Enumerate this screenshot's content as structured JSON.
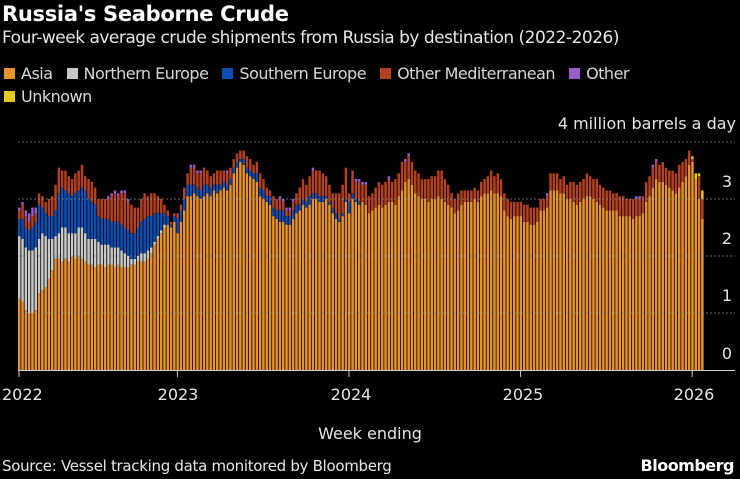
{
  "chart_data": {
    "type": "bar",
    "stacked": true,
    "title": "Russia's Seaborne Crude",
    "subtitle": "Four-week average crude shipments from Russia by destination (2022-2026)",
    "ylabel": "4 million barrels a day",
    "xlabel": "Week ending",
    "ylim": [
      0,
      4
    ],
    "y_ticks": [
      "0",
      "1",
      "2",
      "3"
    ],
    "x_ticks": [
      "2022",
      "2023",
      "2024",
      "2025",
      "2026"
    ],
    "grid": true,
    "legend_position": "top-left",
    "source": "Source: Vessel tracking data monitored by Bloomberg",
    "series": [
      {
        "name": "Asia",
        "color": "#e8922c",
        "values": [
          1.25,
          1.2,
          1.05,
          1.0,
          1.0,
          1.05,
          1.35,
          1.4,
          1.45,
          1.6,
          1.75,
          1.95,
          1.95,
          1.9,
          1.95,
          1.9,
          2.0,
          1.95,
          2.0,
          1.95,
          1.9,
          1.85,
          1.85,
          1.8,
          1.85,
          1.85,
          1.8,
          1.85,
          1.85,
          1.8,
          1.85,
          1.8,
          1.8,
          1.8,
          1.85,
          1.85,
          1.9,
          1.9,
          1.9,
          1.95,
          2.05,
          2.2,
          2.3,
          2.4,
          2.5,
          2.55,
          2.5,
          2.6,
          2.4,
          2.6,
          2.8,
          3.05,
          3.05,
          3.1,
          3.05,
          3.0,
          3.05,
          3.1,
          3.05,
          3.15,
          3.1,
          3.15,
          3.2,
          3.15,
          3.25,
          3.45,
          3.55,
          3.65,
          3.6,
          3.45,
          3.4,
          3.35,
          3.3,
          3.05,
          3.0,
          2.95,
          2.9,
          2.7,
          2.65,
          2.6,
          2.6,
          2.55,
          2.55,
          2.65,
          2.75,
          2.8,
          2.9,
          2.85,
          2.9,
          3.0,
          3.0,
          2.95,
          2.95,
          3.0,
          2.9,
          2.75,
          2.65,
          2.6,
          2.7,
          2.95,
          2.75,
          3.0,
          2.95,
          2.9,
          2.95,
          2.9,
          2.75,
          2.8,
          2.85,
          2.9,
          2.85,
          2.9,
          2.95,
          2.95,
          2.9,
          3.05,
          3.15,
          3.3,
          3.35,
          3.25,
          3.1,
          3.05,
          3.0,
          3.0,
          2.95,
          3.0,
          3.0,
          3.05,
          3.0,
          2.95,
          2.9,
          2.85,
          2.75,
          2.8,
          2.9,
          2.95,
          2.95,
          2.95,
          3.0,
          2.95,
          3.05,
          3.1,
          3.1,
          3.15,
          3.1,
          3.1,
          3.05,
          2.8,
          2.7,
          2.65,
          2.7,
          2.7,
          2.7,
          2.6,
          2.6,
          2.55,
          2.55,
          2.6,
          2.8,
          2.8,
          2.85,
          3.15,
          3.15,
          3.15,
          3.1,
          3.1,
          3.0,
          3.0,
          2.95,
          2.9,
          2.95,
          3.0,
          3.05,
          3.05,
          3.0,
          2.95,
          2.9,
          2.85,
          2.8,
          2.8,
          2.8,
          2.8,
          2.7,
          2.7,
          2.7,
          2.7,
          2.65,
          2.7,
          2.7,
          2.75,
          2.95,
          3.05,
          3.2,
          3.35,
          3.3,
          3.3,
          3.25,
          3.2,
          3.15,
          3.1,
          3.2,
          3.3,
          3.4,
          3.6,
          3.65,
          3.35,
          3.0,
          2.65
        ]
      },
      {
        "name": "Northern Europe",
        "color": "#c8c8c8",
        "values": [
          1.1,
          1.1,
          1.1,
          1.1,
          1.1,
          1.1,
          0.95,
          1.0,
          0.9,
          0.7,
          0.55,
          0.4,
          0.45,
          0.6,
          0.55,
          0.5,
          0.4,
          0.45,
          0.5,
          0.55,
          0.5,
          0.45,
          0.45,
          0.5,
          0.4,
          0.35,
          0.4,
          0.35,
          0.3,
          0.35,
          0.3,
          0.3,
          0.25,
          0.2,
          0.1,
          0.1,
          0.1,
          0.15,
          0.15,
          0.15,
          0.1,
          0.05,
          0.05,
          0.05,
          0.05,
          0,
          0,
          0,
          0,
          0,
          0,
          0,
          0,
          0,
          0,
          0,
          0,
          0,
          0,
          0,
          0,
          0,
          0,
          0,
          0,
          0,
          0,
          0,
          0,
          0,
          0,
          0,
          0,
          0,
          0,
          0,
          0,
          0,
          0,
          0,
          0,
          0,
          0,
          0,
          0,
          0,
          0,
          0,
          0,
          0,
          0,
          0,
          0,
          0,
          0,
          0,
          0,
          0,
          0,
          0,
          0,
          0,
          0,
          0,
          0,
          0,
          0,
          0,
          0,
          0,
          0,
          0,
          0,
          0,
          0,
          0,
          0,
          0,
          0,
          0,
          0,
          0,
          0,
          0,
          0,
          0,
          0,
          0,
          0,
          0,
          0,
          0,
          0,
          0,
          0,
          0,
          0,
          0,
          0,
          0,
          0,
          0,
          0,
          0,
          0,
          0,
          0,
          0,
          0,
          0,
          0,
          0,
          0,
          0,
          0,
          0,
          0,
          0,
          0,
          0,
          0,
          0,
          0,
          0,
          0,
          0,
          0,
          0,
          0,
          0,
          0,
          0,
          0,
          0,
          0,
          0,
          0,
          0,
          0,
          0,
          0,
          0,
          0,
          0,
          0,
          0,
          0,
          0,
          0,
          0,
          0,
          0,
          0,
          0,
          0,
          0,
          0,
          0,
          0,
          0,
          0,
          0,
          0,
          0,
          0,
          0,
          0,
          0
        ]
      },
      {
        "name": "Southern Europe",
        "color": "#0b4fb5",
        "values": [
          0.3,
          0.35,
          0.35,
          0.35,
          0.4,
          0.45,
          0.6,
          0.45,
          0.4,
          0.4,
          0.4,
          0.45,
          0.7,
          0.7,
          0.65,
          0.7,
          0.65,
          0.7,
          0.65,
          0.7,
          0.75,
          0.7,
          0.65,
          0.6,
          0.45,
          0.45,
          0.45,
          0.45,
          0.45,
          0.45,
          0.45,
          0.45,
          0.45,
          0.45,
          0.45,
          0.45,
          0.5,
          0.55,
          0.6,
          0.6,
          0.55,
          0.5,
          0.4,
          0.3,
          0.2,
          0.15,
          0.05,
          0.1,
          0.25,
          0.2,
          0.2,
          0.2,
          0.2,
          0.15,
          0.15,
          0.15,
          0.2,
          0.15,
          0.15,
          0.1,
          0.15,
          0.1,
          0.1,
          0.1,
          0.1,
          0.1,
          0.1,
          0.05,
          0.1,
          0.1,
          0.1,
          0.1,
          0.15,
          0.15,
          0.15,
          0.1,
          0.15,
          0.15,
          0.15,
          0.2,
          0.2,
          0.15,
          0.15,
          0.15,
          0.15,
          0.1,
          0.1,
          0.1,
          0.15,
          0.1,
          0.1,
          0.1,
          0.1,
          0.05,
          0.05,
          0.1,
          0.1,
          0.05,
          0.05,
          0.05,
          0.2,
          0.1,
          0.05,
          0.05,
          0,
          0,
          0,
          0,
          0,
          0,
          0,
          0,
          0,
          0,
          0,
          0,
          0,
          0,
          0,
          0,
          0,
          0,
          0,
          0,
          0,
          0,
          0,
          0,
          0,
          0,
          0,
          0,
          0,
          0,
          0,
          0,
          0,
          0,
          0,
          0,
          0,
          0,
          0,
          0,
          0,
          0,
          0,
          0,
          0,
          0,
          0,
          0,
          0,
          0,
          0,
          0,
          0,
          0,
          0,
          0,
          0,
          0,
          0,
          0,
          0,
          0,
          0,
          0,
          0,
          0,
          0,
          0,
          0,
          0,
          0,
          0,
          0,
          0,
          0,
          0,
          0,
          0,
          0,
          0,
          0,
          0,
          0,
          0,
          0,
          0,
          0,
          0,
          0,
          0,
          0,
          0,
          0,
          0,
          0,
          0,
          0,
          0,
          0,
          0,
          0,
          0,
          0,
          0
        ]
      },
      {
        "name": "Other Mediterranean",
        "color": "#b3401f",
        "values": [
          0.15,
          0.25,
          0.2,
          0.15,
          0.2,
          0.15,
          0.2,
          0.2,
          0.2,
          0.3,
          0.35,
          0.45,
          0.45,
          0.3,
          0.35,
          0.3,
          0.3,
          0.35,
          0.35,
          0.4,
          0.25,
          0.35,
          0.35,
          0.3,
          0.3,
          0.35,
          0.35,
          0.35,
          0.45,
          0.5,
          0.45,
          0.55,
          0.6,
          0.5,
          0.5,
          0.45,
          0.35,
          0.4,
          0.45,
          0.35,
          0.4,
          0.35,
          0.3,
          0.25,
          0.15,
          0.1,
          0.05,
          0.05,
          0.1,
          0.1,
          0.2,
          0.2,
          0.3,
          0.3,
          0.25,
          0.3,
          0.3,
          0.25,
          0.2,
          0.2,
          0.25,
          0.25,
          0.2,
          0.2,
          0.2,
          0.15,
          0.15,
          0.15,
          0.15,
          0.2,
          0.2,
          0.15,
          0.2,
          0.25,
          0.2,
          0.15,
          0.1,
          0.2,
          0.2,
          0.2,
          0.15,
          0.1,
          0.1,
          0.15,
          0.2,
          0.3,
          0.35,
          0.3,
          0.35,
          0.4,
          0.4,
          0.45,
          0.4,
          0.35,
          0.3,
          0.25,
          0.35,
          0.45,
          0.5,
          0.55,
          0.15,
          0.4,
          0.3,
          0.35,
          0.3,
          0.35,
          0.3,
          0.3,
          0.35,
          0.4,
          0.4,
          0.4,
          0.4,
          0.35,
          0.45,
          0.4,
          0.5,
          0.35,
          0.4,
          0.4,
          0.4,
          0.4,
          0.35,
          0.35,
          0.4,
          0.4,
          0.4,
          0.45,
          0.5,
          0.4,
          0.35,
          0.25,
          0.25,
          0.3,
          0.25,
          0.2,
          0.2,
          0.2,
          0.2,
          0.2,
          0.25,
          0.25,
          0.3,
          0.35,
          0.3,
          0.35,
          0.3,
          0.3,
          0.3,
          0.3,
          0.25,
          0.25,
          0.25,
          0.3,
          0.3,
          0.3,
          0.3,
          0.25,
          0.2,
          0.2,
          0.2,
          0.3,
          0.3,
          0.3,
          0.25,
          0.3,
          0.25,
          0.3,
          0.35,
          0.35,
          0.35,
          0.35,
          0.4,
          0.35,
          0.35,
          0.4,
          0.35,
          0.35,
          0.35,
          0.35,
          0.3,
          0.3,
          0.35,
          0.35,
          0.3,
          0.3,
          0.35,
          0.3,
          0.3,
          0.3,
          0.35,
          0.35,
          0.35,
          0.3,
          0.3,
          0.35,
          0.3,
          0.3,
          0.35,
          0.35,
          0.4,
          0.35,
          0.3,
          0.25,
          0.05,
          0,
          0.4,
          0.35
        ]
      },
      {
        "name": "Other",
        "color": "#9b5cc9",
        "values": [
          0.05,
          0.05,
          0.1,
          0.15,
          0.15,
          0.1,
          0,
          0,
          0,
          0,
          0,
          0,
          0,
          0,
          0,
          0,
          0,
          0,
          0,
          0,
          0,
          0,
          0,
          0,
          0,
          0,
          0,
          0.05,
          0.05,
          0.05,
          0.05,
          0.05,
          0.05,
          0.05,
          0,
          0,
          0,
          0,
          0,
          0,
          0,
          0,
          0,
          0,
          0,
          0,
          0,
          0,
          0,
          0,
          0,
          0,
          0.05,
          0.05,
          0.05,
          0.05,
          0,
          0,
          0,
          0,
          0,
          0,
          0,
          0.05,
          0,
          0,
          0,
          0,
          0,
          0,
          0,
          0,
          0,
          0,
          0,
          0,
          0,
          0,
          0,
          0.05,
          0.05,
          0.05,
          0.05,
          0.05,
          0,
          0,
          0,
          0,
          0,
          0.05,
          0,
          0,
          0,
          0,
          0,
          0,
          0,
          0,
          0,
          0,
          0,
          0,
          0.05,
          0.05,
          0.05,
          0.05,
          0,
          0,
          0,
          0,
          0,
          0,
          0.05,
          0,
          0,
          0,
          0,
          0.05,
          0.05,
          0,
          0,
          0,
          0,
          0,
          0,
          0,
          0,
          0,
          0,
          0,
          0,
          0,
          0,
          0,
          0,
          0,
          0,
          0,
          0,
          0,
          0,
          0,
          0,
          0,
          0,
          0,
          0,
          0,
          0,
          0,
          0,
          0,
          0,
          0,
          0,
          0,
          0,
          0,
          0,
          0,
          0.05,
          0,
          0,
          0,
          0,
          0,
          0,
          0,
          0,
          0,
          0,
          0,
          0,
          0,
          0,
          0,
          0,
          0,
          0,
          0,
          0,
          0,
          0,
          0,
          0,
          0,
          0,
          0.05,
          0.05,
          0,
          0,
          0,
          0.05,
          0.05,
          0,
          0,
          0,
          0,
          0,
          0,
          0,
          0,
          0,
          0,
          0,
          0,
          0,
          0
        ]
      },
      {
        "name": "Unknown",
        "color": "#e3c81e",
        "values": [
          0,
          0,
          0,
          0,
          0,
          0,
          0,
          0,
          0,
          0,
          0,
          0,
          0,
          0,
          0,
          0,
          0,
          0,
          0,
          0,
          0,
          0,
          0,
          0,
          0,
          0,
          0,
          0,
          0,
          0,
          0,
          0,
          0,
          0,
          0,
          0,
          0,
          0,
          0,
          0,
          0,
          0,
          0,
          0,
          0,
          0,
          0,
          0,
          0,
          0,
          0,
          0,
          0,
          0,
          0,
          0,
          0,
          0,
          0,
          0,
          0,
          0,
          0,
          0,
          0,
          0,
          0,
          0,
          0,
          0,
          0,
          0,
          0,
          0,
          0,
          0,
          0,
          0,
          0,
          0,
          0,
          0,
          0,
          0,
          0,
          0,
          0,
          0,
          0,
          0,
          0,
          0,
          0,
          0,
          0,
          0,
          0,
          0,
          0,
          0,
          0,
          0,
          0,
          0,
          0,
          0,
          0,
          0,
          0,
          0,
          0,
          0,
          0,
          0,
          0,
          0,
          0,
          0,
          0,
          0,
          0,
          0,
          0,
          0,
          0,
          0,
          0,
          0,
          0,
          0,
          0,
          0,
          0,
          0,
          0,
          0,
          0,
          0,
          0,
          0,
          0,
          0,
          0,
          0,
          0,
          0,
          0,
          0,
          0,
          0,
          0,
          0,
          0,
          0,
          0,
          0,
          0,
          0,
          0,
          0,
          0,
          0,
          0,
          0,
          0,
          0,
          0,
          0,
          0,
          0,
          0,
          0,
          0,
          0,
          0,
          0,
          0,
          0,
          0,
          0,
          0,
          0,
          0,
          0,
          0,
          0,
          0,
          0,
          0,
          0,
          0,
          0,
          0,
          0,
          0,
          0,
          0,
          0,
          0,
          0,
          0,
          0,
          0,
          0,
          0.05,
          0.1,
          0.05,
          0.15
        ]
      }
    ]
  },
  "brand": "Bloomberg"
}
